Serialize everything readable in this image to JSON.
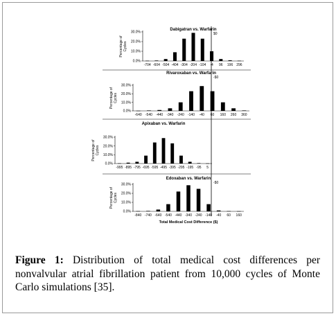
{
  "figure": {
    "caption_label": "Figure 1:",
    "caption_text": " Distribution of total medical cost differences per nonvalvular atrial fibrillation patient from 10,000 cycles of Monte Carlo simulations [35]."
  },
  "chart_data": [
    {
      "type": "bar",
      "title": "Dabigatran vs. Warfarin",
      "ylabel": "Percentage of Cycles",
      "xlabel": "",
      "zero_label": "$0",
      "ylim": [
        0,
        30
      ],
      "yticks": [
        "0.0%",
        "10.0%",
        "20.0%",
        "30.0%"
      ],
      "categories": [
        "-704",
        "-604",
        "-504",
        "-404",
        "-304",
        "-204",
        "-104",
        "-4",
        "96",
        "196",
        "296"
      ],
      "values": [
        0.3,
        0.5,
        2.0,
        9.0,
        23.0,
        29.0,
        23.0,
        10.0,
        2.0,
        0.7,
        0.3
      ],
      "color": "#000000"
    },
    {
      "type": "bar",
      "title": "Rivaroxaban vs. Warfarin",
      "ylabel": "Percentage of Cycles",
      "xlabel": "",
      "zero_label": "-$0",
      "ylim": [
        0,
        30
      ],
      "yticks": [
        "0.0%",
        "10.0%",
        "20.0%",
        "30.0%"
      ],
      "categories": [
        "-640",
        "-540",
        "-440",
        "-340",
        "-240",
        "-140",
        "-40",
        "60",
        "160",
        "260",
        "360"
      ],
      "values": [
        0.2,
        0.5,
        1.0,
        3.0,
        10.0,
        23.0,
        29.0,
        23.0,
        10.0,
        3.0,
        0.5
      ],
      "color": "#000000"
    },
    {
      "type": "bar",
      "title": "Apixaban vs. Warfarin",
      "ylabel": "Percentage of Cycles",
      "xlabel": "",
      "zero_label": "",
      "ylim": [
        0,
        30
      ],
      "yticks": [
        "0.0%",
        "10.0%",
        "20.0%",
        "30.0%"
      ],
      "categories": [
        "-995",
        "-895",
        "-795",
        "-695",
        "-595",
        "-495",
        "-395",
        "-295",
        "-195",
        "-95",
        "5"
      ],
      "values": [
        0.3,
        1.0,
        2.0,
        9.0,
        24.0,
        29.0,
        23.0,
        9.0,
        2.0,
        0.5,
        0.2
      ],
      "color": "#000000"
    },
    {
      "type": "bar",
      "title": "Edoxaban vs. Warfarin",
      "ylabel": "Percentage of Cycles",
      "xlabel": "Total Medical Cost Difference ($)",
      "zero_label": "-$0",
      "ylim": [
        0,
        30
      ],
      "yticks": [
        "0.0%",
        "10.0%",
        "20.0%",
        "30.0%"
      ],
      "categories": [
        "-840",
        "-740",
        "-640",
        "-540",
        "-440",
        "-340",
        "-240",
        "-140",
        "-40",
        "60",
        "160"
      ],
      "values": [
        0.3,
        0.5,
        2.0,
        8.0,
        22.0,
        29.0,
        25.0,
        8.0,
        1.0,
        0.3,
        0.2
      ],
      "color": "#000000"
    }
  ]
}
